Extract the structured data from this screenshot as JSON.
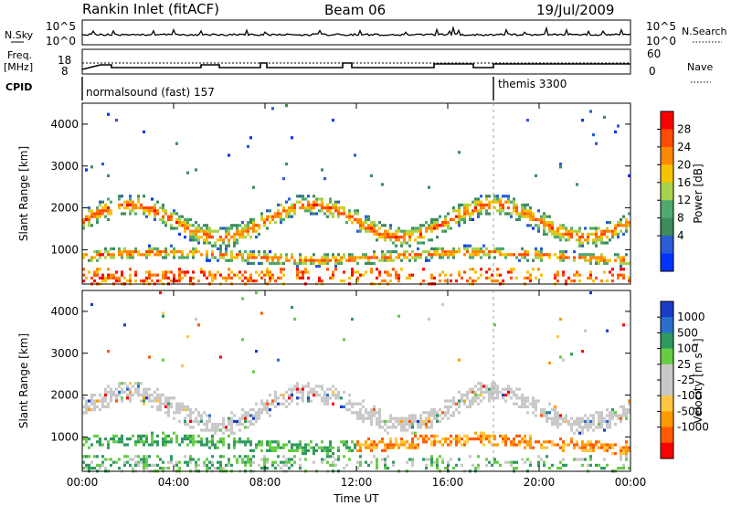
{
  "header": {
    "station": "Rankin Inlet (fitACF)",
    "beam": "Beam 06",
    "date": "19/Jul/2009"
  },
  "panels": {
    "nsky_label": "N.Sky",
    "nsearch_label": "N.Search",
    "noise_ticks": [
      "10^5",
      "10^0"
    ],
    "freq_label_1": "Freq.",
    "freq_label_2": "[MHz]",
    "freq_ticks": [
      "18",
      "8"
    ],
    "nave_label": "Nave",
    "nave_ticks": [
      "60",
      "0"
    ],
    "cpid_label": "CPID",
    "cpid_1": "normalsound (fast) 157",
    "cpid_2": "themis 3300"
  },
  "colors": {
    "power": [
      "#0033ff",
      "#2a5cd6",
      "#3d8c5c",
      "#4fa96e",
      "#a8d24a",
      "#f5c300",
      "#ff8800",
      "#ff4c00",
      "#ff0000"
    ],
    "velocity": [
      "#ff0000",
      "#ff5a00",
      "#ff9a00",
      "#ffc740",
      "#c8c8c8",
      "#c8c8c8",
      "#66cc44",
      "#2e9a5e",
      "#2a6fd0",
      "#1a3cc8"
    ]
  },
  "chart_data": [
    {
      "type": "heatmap",
      "name": "power",
      "ylabel": "Slant Range [km]",
      "xlabel": "",
      "x_ticks": [
        "00:00",
        "04:00",
        "08:00",
        "12:00",
        "16:00",
        "20:00",
        "00:00"
      ],
      "y_ticks": [
        1000,
        2000,
        3000,
        4000
      ],
      "ylim": [
        180,
        4500
      ],
      "colorbar_label": "Power [dB]",
      "colorbar_ticks": [
        4,
        8,
        12,
        16,
        20,
        24,
        28
      ]
    },
    {
      "type": "heatmap",
      "name": "velocity",
      "ylabel": "Slant Range [km]",
      "xlabel": "Time UT",
      "x_ticks": [
        "00:00",
        "04:00",
        "08:00",
        "12:00",
        "16:00",
        "20:00",
        "00:00"
      ],
      "y_ticks": [
        1000,
        2000,
        3000,
        4000
      ],
      "ylim": [
        180,
        4500
      ],
      "colorbar_label": "Velocity [m s⁻¹]",
      "colorbar_ticks": [
        1000,
        500,
        100,
        25,
        -25,
        -100,
        -500,
        -1000
      ]
    }
  ]
}
